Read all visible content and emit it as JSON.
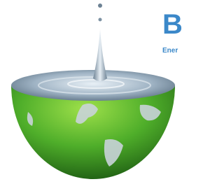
{
  "logo": {
    "letter": "B",
    "tagline": "Ener"
  }
}
